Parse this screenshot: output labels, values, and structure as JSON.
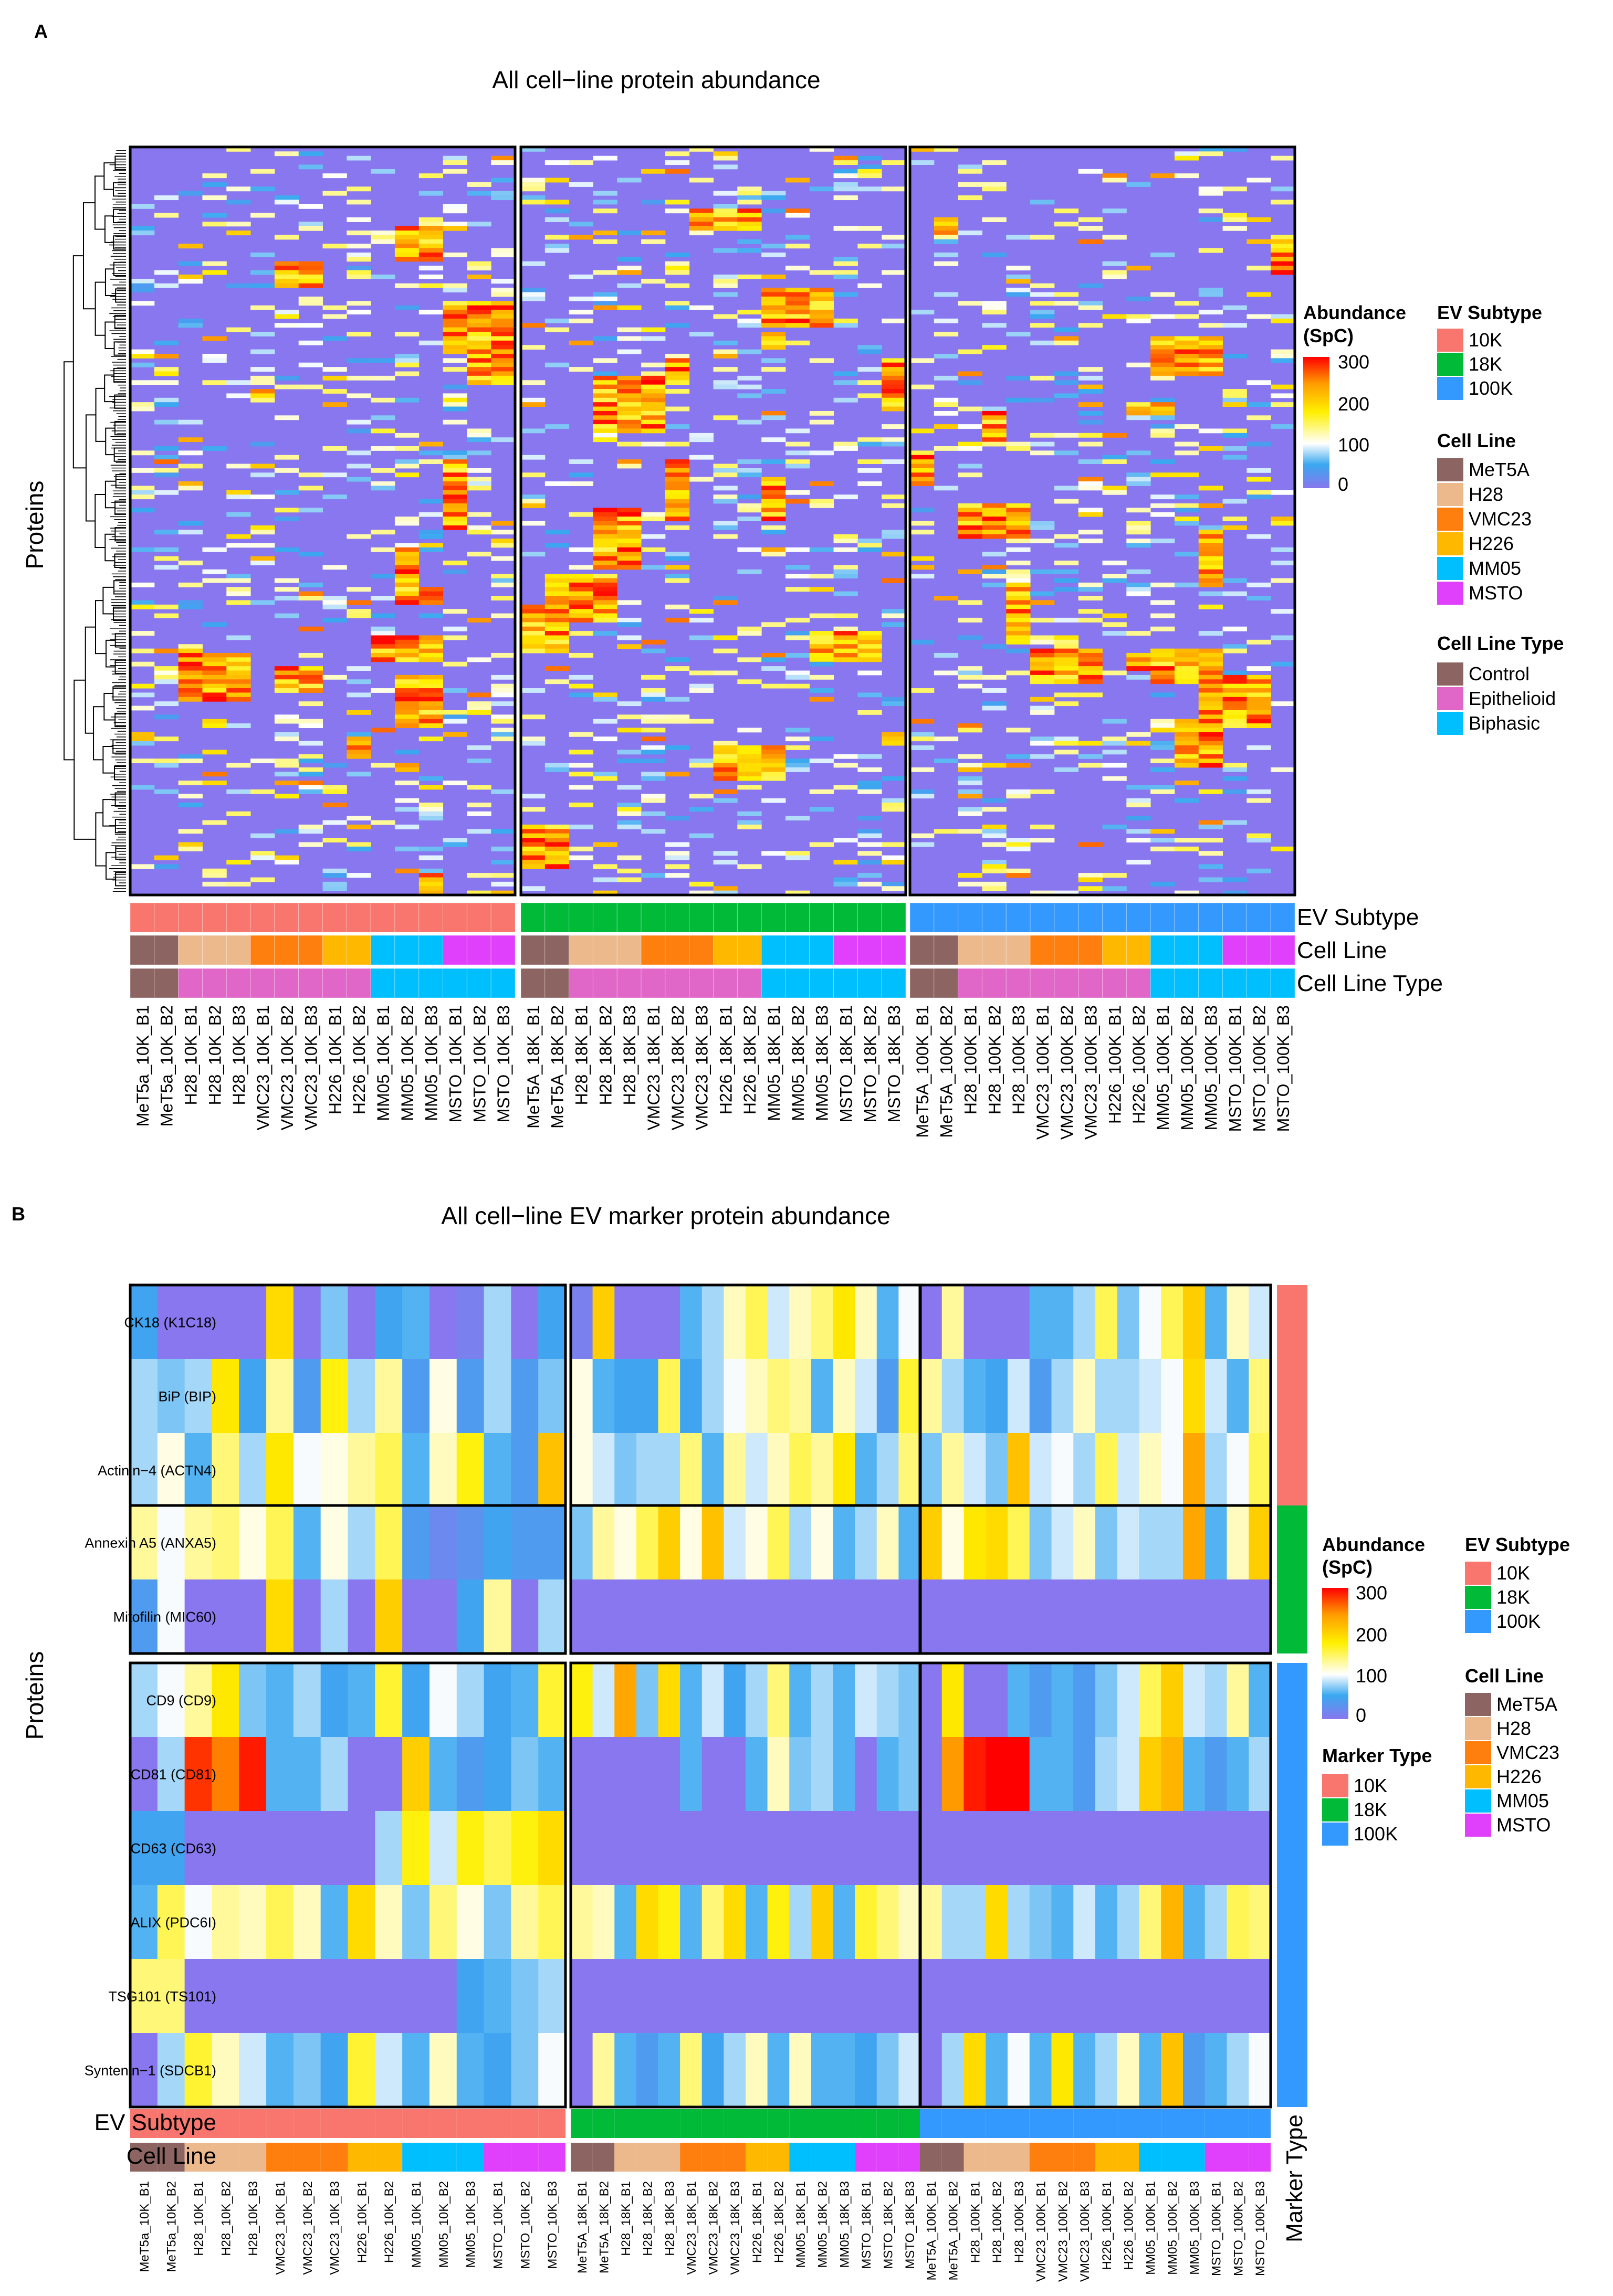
{
  "panel_a": {
    "letter": "A",
    "title": "All cell−line protein abundance",
    "y_axis_label": "Proteins",
    "annotation_row_labels": [
      "EV Subtype",
      "Cell Line",
      "Cell Line Type"
    ],
    "columns": [
      [
        "MeT5a_10K_B1",
        "MeT5a_10K_B2",
        "H28_10K_B1",
        "H28_10K_B2",
        "H28_10K_B3",
        "VMC23_10K_B1",
        "VMC23_10K_B2",
        "VMC23_10K_B3",
        "H226_10K_B1",
        "H226_10K_B2",
        "MM05_10K_B1",
        "MM05_10K_B2",
        "MM05_10K_B3",
        "MSTO_10K_B1",
        "MSTO_10K_B2",
        "MSTO_10K_B3"
      ],
      [
        "MeT5A_18K_B1",
        "MeT5A_18K_B2",
        "H28_18K_B1",
        "H28_18K_B2",
        "H28_18K_B3",
        "VMC23_18K_B1",
        "VMC23_18K_B2",
        "VMC23_18K_B3",
        "H226_18K_B1",
        "H226_18K_B2",
        "MM05_18K_B1",
        "MM05_18K_B2",
        "MM05_18K_B3",
        "MSTO_18K_B1",
        "MSTO_18K_B2",
        "MSTO_18K_B3"
      ],
      [
        "MeT5A_100K_B1",
        "MeT5A_100K_B2",
        "H28_100K_B1",
        "H28_100K_B2",
        "H28_100K_B3",
        "VMC23_100K_B1",
        "VMC23_100K_B2",
        "VMC23_100K_B3",
        "H226_100K_B1",
        "H226_100K_B2",
        "MM05_100K_B1",
        "MM05_100K_B2",
        "MM05_100K_B3",
        "MSTO_100K_B1",
        "MSTO_100K_B2",
        "MSTO_100K_B3"
      ]
    ],
    "legend_abundance": {
      "title_line1": "Abundance",
      "title_line2": "(SpC)",
      "ticks": [
        "300",
        "200",
        "100",
        "0"
      ]
    },
    "legend_ev_subtype": {
      "title": "EV Subtype",
      "items": [
        "10K",
        "18K",
        "100K"
      ]
    },
    "legend_cell_line": {
      "title": "Cell Line",
      "items": [
        "MeT5A",
        "H28",
        "VMC23",
        "H226",
        "MM05",
        "MSTO"
      ]
    },
    "legend_cell_line_type": {
      "title": "Cell Line Type",
      "items": [
        "Control",
        "Epithelioid",
        "Biphasic"
      ]
    }
  },
  "panel_b": {
    "letter": "B",
    "title": "All cell−line EV marker protein abundance",
    "y_axis_label": "Proteins",
    "annotation_row_labels": [
      "EV Subtype",
      "Cell Line"
    ],
    "right_annotation_label": "Marker Type",
    "row_groups": [
      [
        "CK18 (K1C18)",
        "BiP (BIP)",
        "Actinin−4 (ACTN4)"
      ],
      [
        "Annexin A5 (ANXA5)",
        "Mitofilin  (MIC60)"
      ],
      [
        "CD9 (CD9)",
        "CD81 (CD81)",
        "CD63 (CD63)",
        "ALIX (PDC6I)",
        "TSG101 (TS101)",
        "Syntenin−1  (SDCB1)"
      ]
    ],
    "columns": [
      [
        "MeT5a_10K_B1",
        "MeT5a_10K_B2",
        "H28_10K_B1",
        "H28_10K_B2",
        "H28_10K_B3",
        "VMC23_10K_B1",
        "VMC23_10K_B2",
        "VMC23_10K_B3",
        "H226_10K_B1",
        "H226_10K_B2",
        "MM05_10K_B1",
        "MM05_10K_B2",
        "MM05_10K_B3",
        "MSTO_10K_B1",
        "MSTO_10K_B2",
        "MSTO_10K_B3"
      ],
      [
        "MeT5A_18K_B1",
        "MeT5A_18K_B2",
        "H28_18K_B1",
        "H28_18K_B2",
        "H28_18K_B3",
        "VMC23_18K_B1",
        "VMC23_18K_B2",
        "VMC23_18K_B3",
        "H226_18K_B1",
        "H226_18K_B2",
        "MM05_18K_B1",
        "MM05_18K_B2",
        "MM05_18K_B3",
        "MSTO_18K_B1",
        "MSTO_18K_B2",
        "MSTO_18K_B3"
      ],
      [
        "MeT5A_100K_B1",
        "MeT5A_100K_B2",
        "H28_100K_B1",
        "H28_100K_B2",
        "H28_100K_B3",
        "VMC23_100K_B1",
        "VMC23_100K_B2",
        "VMC23_100K_B3",
        "H226_100K_B1",
        "H226_100K_B2",
        "MM05_100K_B1",
        "MM05_100K_B2",
        "MM05_100K_B3",
        "MSTO_100K_B1",
        "MSTO_100K_B2",
        "MSTO_100K_B3"
      ]
    ],
    "legend_abundance": {
      "title_line1": "Abundance",
      "title_line2": "(SpC)",
      "ticks": [
        "300",
        "200",
        "100",
        "0"
      ]
    },
    "legend_marker_type": {
      "title": "Marker Type",
      "items": [
        "10K",
        "18K",
        "100K"
      ]
    },
    "legend_ev_subtype": {
      "title": "EV Subtype",
      "items": [
        "10K",
        "18K",
        "100K"
      ]
    },
    "legend_cell_line": {
      "title": "Cell Line",
      "items": [
        "MeT5A",
        "H28",
        "VMC23",
        "H226",
        "MM05",
        "MSTO"
      ]
    }
  },
  "colors": {
    "ev_10K": "#F8766D",
    "ev_18K": "#00BA38",
    "ev_100K": "#3399FF",
    "MeT5A": "#8C6461",
    "H28": "#EBB98C",
    "VMC23": "#FF7F0E",
    "H226": "#FFB800",
    "MM05": "#00BFFF",
    "MSTO": "#E040FB",
    "Control": "#8C6461",
    "Epithelioid": "#E066C8",
    "Biphasic": "#00BFFF",
    "scale": [
      "#8877EE",
      "#3AA8F0",
      "#FFFFFF",
      "#FFF000",
      "#FF9A00",
      "#FF0000"
    ]
  },
  "chart_data": [
    {
      "type": "heatmap",
      "title": "All cell−line protein abundance",
      "ylabel": "Proteins",
      "value_range": [
        0,
        300
      ],
      "column_groups": [
        "10K",
        "18K",
        "100K"
      ],
      "cell_lines_per_column": [
        "MeT5A",
        "MeT5A",
        "H28",
        "H28",
        "H28",
        "VMC23",
        "VMC23",
        "VMC23",
        "H226",
        "H226",
        "MM05",
        "MM05",
        "MM05",
        "MSTO",
        "MSTO",
        "MSTO"
      ],
      "cell_line_type_per_column": [
        "Control",
        "Control",
        "Epithelioid",
        "Epithelioid",
        "Epithelioid",
        "Epithelioid",
        "Epithelioid",
        "Epithelioid",
        "Epithelioid",
        "Epithelioid",
        "Biphasic",
        "Biphasic",
        "Biphasic",
        "Biphasic",
        "Biphasic",
        "Biphasic"
      ],
      "note": "Several hundred clustered protein rows (rows dendrogram-ordered); individual values not legible. Background mostly near 0 with blocks of high abundance per cell line."
    },
    {
      "type": "heatmap",
      "title": "All cell−line EV marker protein abundance",
      "ylabel": "Proteins",
      "value_range": [
        0,
        300
      ],
      "proteins": [
        "CK18 (K1C18)",
        "BiP (BIP)",
        "Actinin−4 (ACTN4)",
        "Annexin A5 (ANXA5)",
        "Mitofilin  (MIC60)",
        "CD9 (CD9)",
        "CD81 (CD81)",
        "CD63 (CD63)",
        "ALIX (PDC6I)",
        "TSG101 (TS101)",
        "Syntenin−1  (SDCB1)"
      ],
      "marker_type_per_protein": [
        "10K",
        "10K",
        "10K",
        "18K",
        "18K",
        "100K",
        "100K",
        "100K",
        "100K",
        "100K",
        "100K"
      ],
      "values": [
        [
          50,
          0,
          0,
          0,
          0,
          190,
          0,
          70,
          0,
          50,
          60,
          0,
          10,
          80,
          0,
          50,
          10,
          200,
          0,
          0,
          0,
          60,
          80,
          120,
          150,
          90,
          120,
          140,
          180,
          120,
          60,
          100,
          0,
          130,
          0,
          0,
          0,
          60,
          60,
          80,
          150,
          70,
          100,
          150,
          200,
          60,
          120,
          90
        ],
        [
          80,
          70,
          80,
          180,
          50,
          130,
          40,
          170,
          80,
          130,
          40,
          110,
          40,
          80,
          40,
          70,
          110,
          60,
          50,
          50,
          150,
          50,
          80,
          100,
          120,
          140,
          130,
          60,
          120,
          90,
          40,
          160,
          130,
          80,
          60,
          50,
          90,
          40,
          80,
          120,
          80,
          80,
          90,
          100,
          190,
          90,
          60,
          140
        ],
        [
          80,
          110,
          60,
          140,
          80,
          180,
          100,
          110,
          130,
          150,
          60,
          120,
          170,
          60,
          40,
          210,
          110,
          90,
          70,
          80,
          80,
          140,
          60,
          130,
          90,
          120,
          150,
          130,
          180,
          60,
          80,
          140,
          70,
          130,
          90,
          70,
          210,
          90,
          100,
          80,
          150,
          90,
          120,
          100,
          230,
          80,
          100,
          150
        ],
        [
          130,
          100,
          130,
          140,
          110,
          150,
          60,
          110,
          80,
          150,
          40,
          20,
          30,
          50,
          40,
          40,
          70,
          130,
          110,
          150,
          200,
          110,
          210,
          90,
          110,
          150,
          80,
          110,
          60,
          80,
          120,
          60,
          200,
          110,
          180,
          190,
          150,
          70,
          90,
          120,
          70,
          90,
          80,
          80,
          230,
          60,
          120,
          200
        ],
        [
          40,
          100,
          0,
          0,
          0,
          190,
          0,
          80,
          0,
          200,
          0,
          0,
          50,
          130,
          0,
          80,
          0,
          0,
          0,
          0,
          0,
          0,
          0,
          0,
          0,
          0,
          0,
          0,
          0,
          0,
          0,
          0,
          0,
          0,
          0,
          0,
          0,
          0,
          0,
          0,
          0,
          0,
          0,
          0,
          0,
          0,
          0,
          0
        ],
        [
          80,
          100,
          130,
          180,
          70,
          60,
          80,
          50,
          60,
          160,
          50,
          100,
          80,
          50,
          60,
          160,
          170,
          90,
          230,
          70,
          190,
          60,
          90,
          50,
          80,
          140,
          60,
          80,
          60,
          90,
          80,
          70,
          0,
          180,
          0,
          0,
          60,
          40,
          60,
          40,
          70,
          90,
          150,
          200,
          90,
          80,
          130,
          60
        ],
        [
          0,
          80,
          280,
          250,
          290,
          60,
          60,
          80,
          0,
          0,
          200,
          60,
          40,
          50,
          70,
          60,
          0,
          0,
          0,
          0,
          0,
          60,
          0,
          0,
          60,
          120,
          70,
          80,
          60,
          0,
          60,
          70,
          0,
          240,
          290,
          300,
          300,
          60,
          60,
          40,
          80,
          90,
          200,
          220,
          60,
          40,
          60,
          80
        ],
        [
          50,
          50,
          0,
          0,
          0,
          0,
          0,
          0,
          0,
          80,
          170,
          90,
          170,
          150,
          170,
          190,
          0,
          0,
          0,
          0,
          0,
          0,
          0,
          0,
          0,
          0,
          0,
          0,
          0,
          0,
          0,
          0,
          0,
          0,
          0,
          0,
          0,
          0,
          0,
          0,
          0,
          0,
          0,
          0,
          0,
          0,
          0,
          0
        ],
        [
          60,
          150,
          100,
          130,
          120,
          150,
          120,
          60,
          190,
          120,
          70,
          140,
          110,
          70,
          130,
          150,
          130,
          120,
          60,
          190,
          170,
          60,
          140,
          190,
          60,
          170,
          80,
          200,
          60,
          160,
          140,
          120,
          130,
          80,
          80,
          190,
          80,
          70,
          60,
          90,
          60,
          80,
          140,
          220,
          60,
          80,
          150,
          140
        ],
        [
          140,
          140,
          0,
          0,
          0,
          0,
          0,
          0,
          0,
          0,
          0,
          0,
          50,
          60,
          70,
          80,
          0,
          0,
          0,
          0,
          0,
          0,
          0,
          0,
          0,
          0,
          0,
          0,
          0,
          0,
          0,
          0,
          0,
          0,
          0,
          0,
          0,
          0,
          0,
          0,
          0,
          0,
          0,
          0,
          0,
          0,
          0,
          0
        ],
        [
          0,
          80,
          160,
          120,
          90,
          60,
          70,
          50,
          160,
          90,
          60,
          120,
          60,
          50,
          70,
          100,
          0,
          130,
          60,
          40,
          60,
          140,
          50,
          80,
          120,
          60,
          120,
          60,
          60,
          50,
          70,
          90,
          0,
          80,
          190,
          60,
          100,
          60,
          180,
          60,
          80,
          120,
          60,
          210,
          40,
          60,
          80,
          100
        ]
      ]
    }
  ]
}
